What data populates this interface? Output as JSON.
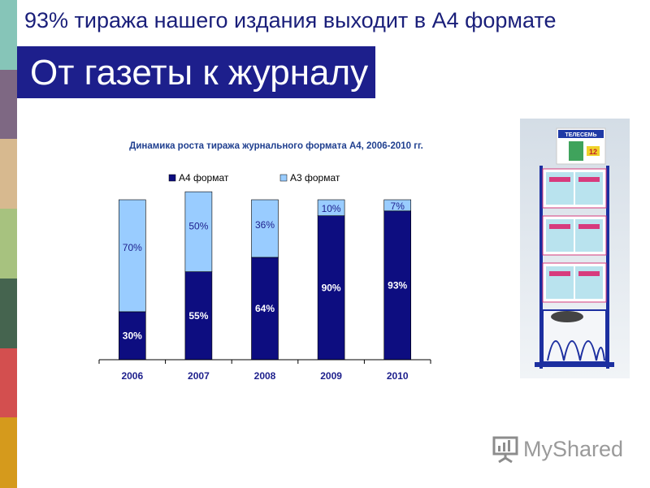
{
  "headline": "93% тиража нашего издания выходит в А4 формате",
  "page_title": "От газеты к журналу",
  "colors": {
    "title_bar": "#1d1f8c",
    "headline_text": "#1a1f7a",
    "series_a4": "#0d0d80",
    "series_a3": "#99ccff",
    "chart_title": "#1f3f8f",
    "stripe": [
      "#86c5b8",
      "#7e6883",
      "#d7b98f",
      "#a7c27f",
      "#45644f",
      "#d34f4f",
      "#d59a1c"
    ]
  },
  "chart_data": {
    "type": "bar",
    "stacked": true,
    "percent": true,
    "title": "Динамика роста тиража журнального формата А4, 2006-2010 гг.",
    "categories": [
      "2006",
      "2007",
      "2008",
      "2009",
      "2010"
    ],
    "series": [
      {
        "name": "А4 формат",
        "values": [
          30,
          55,
          64,
          90,
          93
        ],
        "labels": [
          "30%",
          "55%",
          "64%",
          "90%",
          "93%"
        ]
      },
      {
        "name": "А3 формат",
        "values": [
          70,
          50,
          36,
          10,
          7
        ],
        "labels": [
          "70%",
          "50%",
          "36%",
          "10%",
          "7%"
        ]
      }
    ],
    "ylim": [
      0,
      100
    ],
    "legend": "top",
    "grid": false
  },
  "illustration": {
    "sign_text": "ТЕЛЕСЕМЬ",
    "sign_number": "12"
  },
  "watermark": {
    "text": "MyShared"
  }
}
